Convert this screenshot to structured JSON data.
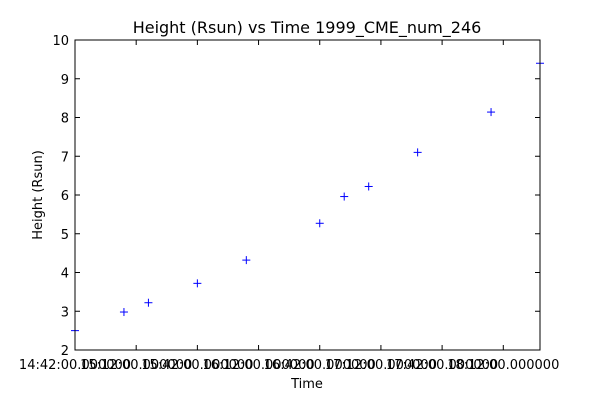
{
  "chart_data": {
    "type": "scatter",
    "title": "Height (Rsun) vs Time 1999_CME_num_246",
    "xlabel": "Time",
    "ylabel": "Height (Rsun)",
    "ylim": [
      2,
      10
    ],
    "yticks": [
      2,
      3,
      4,
      5,
      6,
      7,
      8,
      9,
      10
    ],
    "xlim": [
      "14:42:00",
      "18:30:00"
    ],
    "xticks": [
      "14:42:00",
      "15:12:00",
      "15:42:00",
      "16:12:00",
      "16:42:00",
      "17:12:00",
      "17:42:00",
      "18:12:00"
    ],
    "xtick_labels": [
      "14:42:00.000000",
      "15:12:00.000000",
      "15:42:00.000000",
      "16:12:00.000000",
      "16:42:00.000000",
      "17:12:00.000000",
      "17:42:00.000000",
      "18:12:00.000000"
    ],
    "grid": false,
    "marker": "+",
    "color": "#0000ff",
    "points": [
      {
        "x": "14:42:00",
        "y": 2.5
      },
      {
        "x": "15:06:00",
        "y": 2.98
      },
      {
        "x": "15:18:00",
        "y": 3.22
      },
      {
        "x": "15:42:00",
        "y": 3.72
      },
      {
        "x": "16:06:00",
        "y": 4.32
      },
      {
        "x": "16:42:00",
        "y": 5.27
      },
      {
        "x": "16:54:00",
        "y": 5.96
      },
      {
        "x": "17:06:00",
        "y": 6.22
      },
      {
        "x": "17:30:00",
        "y": 7.1
      },
      {
        "x": "18:06:00",
        "y": 8.14
      },
      {
        "x": "18:30:00",
        "y": 9.4
      }
    ]
  }
}
